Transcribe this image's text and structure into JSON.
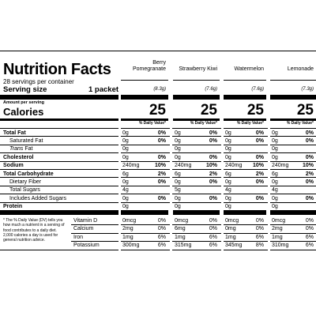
{
  "title": "Nutrition Facts",
  "servings_per_container": "28 servings per container",
  "serving_size_label": "Serving size",
  "serving_size_value": "1 packet",
  "amount_per_serving": "Amount per serving",
  "calories_label": "Calories",
  "daily_value_header": "% Daily Value*",
  "products": [
    {
      "name_line1": "Berry",
      "name_line2": "Pomegranate",
      "weight": "(8.3g)",
      "calories": "25",
      "values": [
        {
          "amt": "0g",
          "dv": "0%"
        },
        {
          "amt": "0g",
          "dv": "0%"
        },
        {
          "amt": "0g",
          "dv": ""
        },
        {
          "amt": "0g",
          "dv": "0%"
        },
        {
          "amt": "240mg",
          "dv": "10%"
        },
        {
          "amt": "6g",
          "dv": "2%"
        },
        {
          "amt": "0g",
          "dv": "0%"
        },
        {
          "amt": "4g",
          "dv": ""
        },
        {
          "amt": "0g",
          "dv": "0%"
        },
        {
          "amt": "0g",
          "dv": ""
        },
        {
          "amt": "0mcg",
          "dv": "0%"
        },
        {
          "amt": "2mg",
          "dv": "0%"
        },
        {
          "amt": "1mg",
          "dv": "6%"
        },
        {
          "amt": "300mg",
          "dv": "6%"
        }
      ]
    },
    {
      "name_line1": "",
      "name_line2": "Strawberry Kiwi",
      "weight": "(7.6g)",
      "calories": "25",
      "values": [
        {
          "amt": "0g",
          "dv": "0%"
        },
        {
          "amt": "0g",
          "dv": "0%"
        },
        {
          "amt": "0g",
          "dv": ""
        },
        {
          "amt": "0g",
          "dv": "0%"
        },
        {
          "amt": "240mg",
          "dv": "10%"
        },
        {
          "amt": "6g",
          "dv": "2%"
        },
        {
          "amt": "0g",
          "dv": "0%"
        },
        {
          "amt": "5g",
          "dv": ""
        },
        {
          "amt": "0g",
          "dv": "0%"
        },
        {
          "amt": "0g",
          "dv": ""
        },
        {
          "amt": "0mcg",
          "dv": "0%"
        },
        {
          "amt": "6mg",
          "dv": "0%"
        },
        {
          "amt": "1mg",
          "dv": "6%"
        },
        {
          "amt": "315mg",
          "dv": "6%"
        }
      ]
    },
    {
      "name_line1": "",
      "name_line2": "Watermelon",
      "weight": "(7.6g)",
      "calories": "25",
      "values": [
        {
          "amt": "0g",
          "dv": "0%"
        },
        {
          "amt": "0g",
          "dv": "0%"
        },
        {
          "amt": "0g",
          "dv": ""
        },
        {
          "amt": "0g",
          "dv": "0%"
        },
        {
          "amt": "240mg",
          "dv": "10%"
        },
        {
          "amt": "6g",
          "dv": "2%"
        },
        {
          "amt": "0g",
          "dv": "0%"
        },
        {
          "amt": "4g",
          "dv": ""
        },
        {
          "amt": "0g",
          "dv": "0%"
        },
        {
          "amt": "0g",
          "dv": ""
        },
        {
          "amt": "0mcg",
          "dv": "0%"
        },
        {
          "amt": "0mg",
          "dv": "0%"
        },
        {
          "amt": "1mg",
          "dv": "6%"
        },
        {
          "amt": "345mg",
          "dv": "8%"
        }
      ]
    },
    {
      "name_line1": "",
      "name_line2": "Lemonade",
      "weight": "(7.3g)",
      "calories": "25",
      "values": [
        {
          "amt": "0g",
          "dv": "0%"
        },
        {
          "amt": "0g",
          "dv": "0%"
        },
        {
          "amt": "0g",
          "dv": ""
        },
        {
          "amt": "0g",
          "dv": "0%"
        },
        {
          "amt": "240mg",
          "dv": "10%"
        },
        {
          "amt": "6g",
          "dv": "2%"
        },
        {
          "amt": "0g",
          "dv": "0%"
        },
        {
          "amt": "4g",
          "dv": ""
        },
        {
          "amt": "0g",
          "dv": "0%"
        },
        {
          "amt": "0g",
          "dv": ""
        },
        {
          "amt": "0mcg",
          "dv": "0%"
        },
        {
          "amt": "2mg",
          "dv": "0%"
        },
        {
          "amt": "1mg",
          "dv": "6%"
        },
        {
          "amt": "310mg",
          "dv": "6%"
        }
      ]
    }
  ],
  "nutrients": [
    {
      "label": "Total Fat",
      "bold": true
    },
    {
      "label": "Saturated Fat",
      "bold": false
    },
    {
      "label": "Trans Fat",
      "bold": false,
      "italic_prefix": "Trans"
    },
    {
      "label": "Cholesterol",
      "bold": true
    },
    {
      "label": "Sodium",
      "bold": true
    },
    {
      "label": "Total Carbohydrate",
      "bold": true
    },
    {
      "label": "Dietary Fiber",
      "bold": false
    },
    {
      "label": "Total Sugars",
      "bold": false
    },
    {
      "label": "Includes Added Sugars",
      "bold": false
    },
    {
      "label": "Protein",
      "bold": true
    }
  ],
  "micronutrients": [
    "Vitamin D",
    "Calcium",
    "Iron",
    "Potassium"
  ],
  "footnote": "* The % Daily Value (DV) tells you how much a nutrient in a serving of food contributes to a daily diet. 2,000 calories a day is used for general nutrition advice."
}
